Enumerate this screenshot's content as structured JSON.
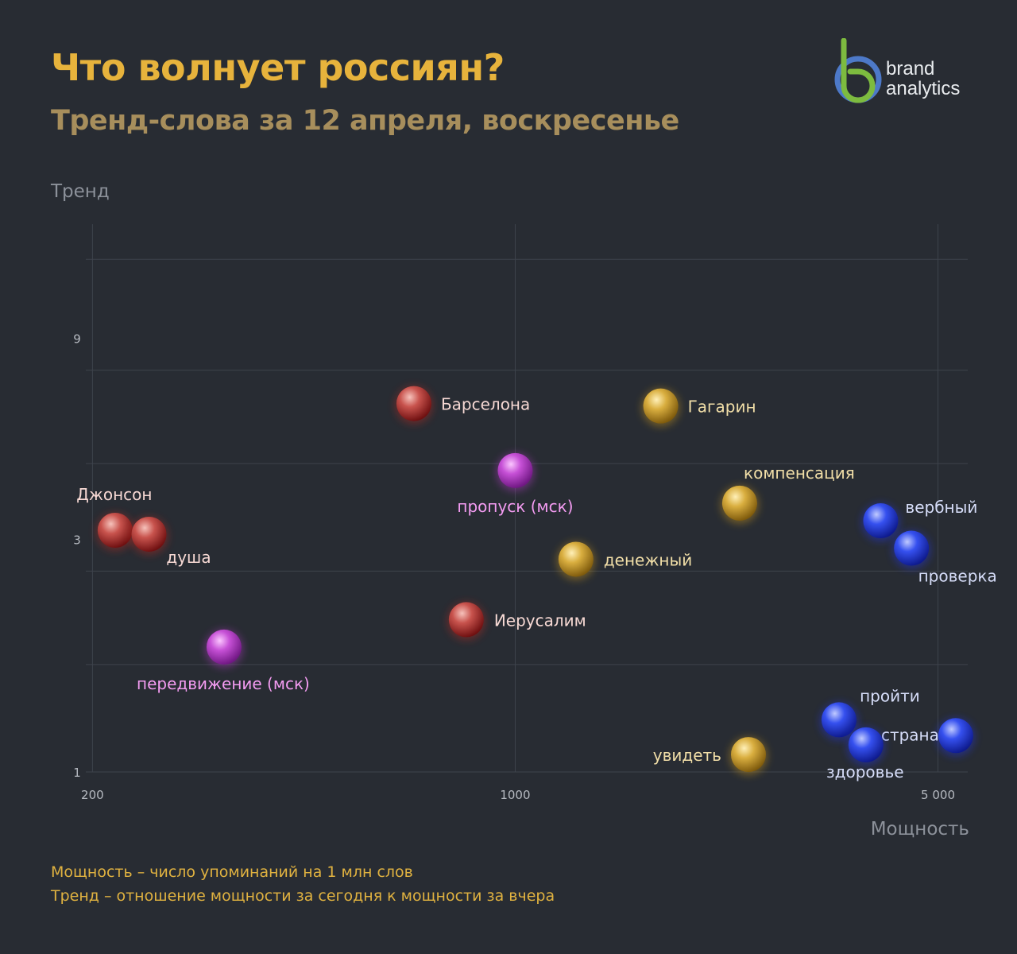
{
  "header": {
    "title": "Что волнует россиян?",
    "subtitle": "Тренд-слова за 12 апреля, воскресенье"
  },
  "logo": {
    "line1": "brand",
    "line2": "analytics"
  },
  "footer": {
    "note1": "Мощность – число упоминаний на 1 млн слов",
    "note2": "Тренд – отношение мощности за сегодня к мощности за вчера"
  },
  "colors": {
    "background": "#282c33",
    "title": "#e7b33c",
    "subtitle": "#a78e5c",
    "red": "#c0504d",
    "gold": "#d4a93a",
    "magenta": "#c54ad3",
    "blue": "#2f47e8"
  },
  "chart_data": {
    "type": "scatter",
    "xlabel": "Мощность",
    "ylabel": "Тренд",
    "x_scale": "log",
    "y_scale": "log",
    "xlim": [
      195,
      5600
    ],
    "ylim": [
      1,
      20
    ],
    "x_ticks": [
      {
        "value": 200,
        "label": "200"
      },
      {
        "value": 1000,
        "label": "1000"
      },
      {
        "value": 5000,
        "label": "5 000"
      }
    ],
    "y_ticks": [
      {
        "value": 1,
        "label": "1"
      },
      {
        "value": 3,
        "label": "3"
      },
      {
        "value": 9,
        "label": "9"
      }
    ],
    "grid": true,
    "points": [
      {
        "label": "Барселона",
        "x": 680,
        "y": 7.5,
        "color": "red"
      },
      {
        "label": "Гагарин",
        "x": 1740,
        "y": 7.4,
        "color": "gold"
      },
      {
        "label": "пропуск (мск)",
        "x": 1000,
        "y": 5.2,
        "color": "magenta"
      },
      {
        "label": "компенсация",
        "x": 2350,
        "y": 4.35,
        "color": "gold"
      },
      {
        "label": "Джонсон",
        "x": 218,
        "y": 3.75,
        "color": "red"
      },
      {
        "label": "душа",
        "x": 248,
        "y": 3.67,
        "color": "red"
      },
      {
        "label": "вербный",
        "x": 4020,
        "y": 3.95,
        "color": "blue"
      },
      {
        "label": "проверка",
        "x": 4520,
        "y": 3.4,
        "color": "blue"
      },
      {
        "label": "денежный",
        "x": 1260,
        "y": 3.2,
        "color": "gold"
      },
      {
        "label": "Иерусалим",
        "x": 830,
        "y": 2.3,
        "color": "red"
      },
      {
        "label": "передвижение (мск)",
        "x": 330,
        "y": 1.98,
        "color": "magenta"
      },
      {
        "label": "пройти",
        "x": 3430,
        "y": 1.33,
        "color": "blue"
      },
      {
        "label": "страна",
        "x": 5350,
        "y": 1.22,
        "color": "blue"
      },
      {
        "label": "здоровье",
        "x": 3800,
        "y": 1.16,
        "color": "blue"
      },
      {
        "label": "увидеть",
        "x": 2430,
        "y": 1.1,
        "color": "gold"
      }
    ]
  }
}
